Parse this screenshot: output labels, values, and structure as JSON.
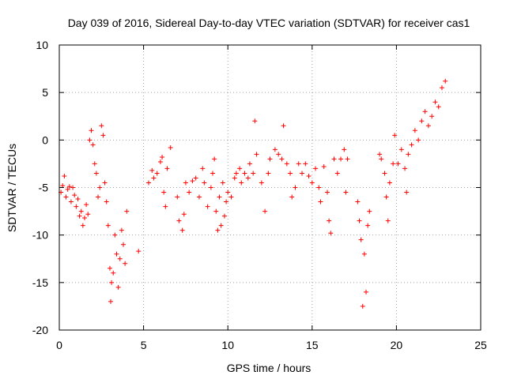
{
  "chart_data": {
    "type": "scatter",
    "title": "Day 039 of 2016, Sidereal Day-to-day VTEC variation (SDTVAR) for receiver cas1",
    "xlabel": "GPS time / hours",
    "ylabel": "SDTVAR / TECUs",
    "xlim": [
      0,
      25
    ],
    "ylim": [
      -20,
      10
    ],
    "xticks": [
      0,
      5,
      10,
      15,
      20,
      25
    ],
    "yticks": [
      -20,
      -15,
      -10,
      -5,
      0,
      5,
      10
    ],
    "grid": true,
    "marker": "+",
    "marker_color": "#ff0000",
    "series": [
      {
        "name": "SDTVAR",
        "points": [
          [
            0.1,
            -5.5
          ],
          [
            0.2,
            -4.8
          ],
          [
            0.3,
            -3.8
          ],
          [
            0.4,
            -6.0
          ],
          [
            0.5,
            -5.2
          ],
          [
            0.6,
            -4.9
          ],
          [
            0.7,
            -6.5
          ],
          [
            0.8,
            -5.0
          ],
          [
            0.9,
            -5.8
          ],
          [
            1.0,
            -7.0
          ],
          [
            1.1,
            -6.2
          ],
          [
            1.2,
            -8.0
          ],
          [
            1.3,
            -7.5
          ],
          [
            1.4,
            -9.0
          ],
          [
            1.5,
            -8.2
          ],
          [
            1.6,
            -6.8
          ],
          [
            1.7,
            -7.8
          ],
          [
            1.8,
            0.0
          ],
          [
            1.9,
            1.0
          ],
          [
            2.0,
            -0.5
          ],
          [
            2.1,
            -2.5
          ],
          [
            2.2,
            -3.5
          ],
          [
            2.3,
            -6.0
          ],
          [
            2.4,
            -5.0
          ],
          [
            2.5,
            1.5
          ],
          [
            2.6,
            0.5
          ],
          [
            2.7,
            -4.5
          ],
          [
            2.8,
            -6.5
          ],
          [
            2.9,
            -9.0
          ],
          [
            3.0,
            -13.5
          ],
          [
            3.05,
            -17.0
          ],
          [
            3.1,
            -15.0
          ],
          [
            3.2,
            -14.0
          ],
          [
            3.3,
            -10.0
          ],
          [
            3.4,
            -12.0
          ],
          [
            3.5,
            -15.5
          ],
          [
            3.6,
            -12.5
          ],
          [
            3.7,
            -9.5
          ],
          [
            3.8,
            -11.0
          ],
          [
            3.9,
            -13.0
          ],
          [
            4.0,
            -7.5
          ],
          [
            4.7,
            -11.7
          ],
          [
            5.3,
            -4.5
          ],
          [
            5.5,
            -3.2
          ],
          [
            5.6,
            -4.0
          ],
          [
            5.8,
            -3.5
          ],
          [
            6.0,
            -2.3
          ],
          [
            6.1,
            -1.8
          ],
          [
            6.2,
            -5.5
          ],
          [
            6.3,
            -7.0
          ],
          [
            6.4,
            -3.0
          ],
          [
            6.6,
            -0.8
          ],
          [
            7.0,
            -6.0
          ],
          [
            7.1,
            -8.5
          ],
          [
            7.3,
            -9.5
          ],
          [
            7.4,
            -7.8
          ],
          [
            7.5,
            -4.5
          ],
          [
            7.7,
            -5.5
          ],
          [
            7.9,
            -4.3
          ],
          [
            8.1,
            -4.0
          ],
          [
            8.3,
            -6.0
          ],
          [
            8.5,
            -3.0
          ],
          [
            8.6,
            -4.5
          ],
          [
            8.8,
            -7.0
          ],
          [
            9.0,
            -5.0
          ],
          [
            9.1,
            -3.5
          ],
          [
            9.2,
            -2.0
          ],
          [
            9.3,
            -7.5
          ],
          [
            9.4,
            -9.5
          ],
          [
            9.5,
            -6.0
          ],
          [
            9.6,
            -9.0
          ],
          [
            9.7,
            -4.5
          ],
          [
            9.8,
            -8.0
          ],
          [
            9.9,
            -6.5
          ],
          [
            10.0,
            -5.5
          ],
          [
            10.2,
            -6.0
          ],
          [
            10.4,
            -4.0
          ],
          [
            10.5,
            -3.5
          ],
          [
            10.7,
            -3.0
          ],
          [
            10.8,
            -4.5
          ],
          [
            11.0,
            -3.5
          ],
          [
            11.2,
            -4.0
          ],
          [
            11.3,
            -2.5
          ],
          [
            11.5,
            -3.5
          ],
          [
            11.6,
            2.0
          ],
          [
            11.7,
            -1.5
          ],
          [
            12.0,
            -4.5
          ],
          [
            12.2,
            -7.5
          ],
          [
            12.4,
            -3.5
          ],
          [
            12.5,
            -2.0
          ],
          [
            12.8,
            -1.0
          ],
          [
            13.0,
            -1.5
          ],
          [
            13.2,
            -2.0
          ],
          [
            13.3,
            1.5
          ],
          [
            13.5,
            -2.5
          ],
          [
            13.7,
            -3.5
          ],
          [
            13.8,
            -6.0
          ],
          [
            14.0,
            -5.0
          ],
          [
            14.2,
            -2.5
          ],
          [
            14.4,
            -3.5
          ],
          [
            14.6,
            -2.5
          ],
          [
            14.8,
            -3.8
          ],
          [
            15.0,
            -4.5
          ],
          [
            15.2,
            -3.0
          ],
          [
            15.4,
            -5.0
          ],
          [
            15.5,
            -6.5
          ],
          [
            15.7,
            -2.8
          ],
          [
            15.9,
            -5.5
          ],
          [
            16.0,
            -8.5
          ],
          [
            16.1,
            -9.8
          ],
          [
            16.3,
            -2.0
          ],
          [
            16.5,
            -3.5
          ],
          [
            16.7,
            -2.0
          ],
          [
            16.9,
            -1.0
          ],
          [
            17.0,
            -5.5
          ],
          [
            17.1,
            -2.0
          ],
          [
            17.7,
            -6.5
          ],
          [
            17.8,
            -8.5
          ],
          [
            17.9,
            -10.5
          ],
          [
            18.0,
            -17.5
          ],
          [
            18.1,
            -12.0
          ],
          [
            18.2,
            -16.0
          ],
          [
            18.3,
            -9.0
          ],
          [
            18.4,
            -7.5
          ],
          [
            19.0,
            -1.5
          ],
          [
            19.1,
            -2.0
          ],
          [
            19.3,
            -3.5
          ],
          [
            19.4,
            -6.0
          ],
          [
            19.5,
            -8.5
          ],
          [
            19.6,
            -4.5
          ],
          [
            19.8,
            -2.5
          ],
          [
            19.9,
            0.5
          ],
          [
            20.1,
            -2.5
          ],
          [
            20.3,
            -1.0
          ],
          [
            20.5,
            -3.0
          ],
          [
            20.6,
            -5.5
          ],
          [
            20.7,
            -1.5
          ],
          [
            20.9,
            -0.5
          ],
          [
            21.1,
            1.0
          ],
          [
            21.3,
            0.0
          ],
          [
            21.5,
            2.0
          ],
          [
            21.7,
            3.0
          ],
          [
            21.9,
            1.5
          ],
          [
            22.1,
            2.5
          ],
          [
            22.3,
            4.0
          ],
          [
            22.5,
            3.5
          ],
          [
            22.7,
            5.5
          ],
          [
            22.9,
            6.2
          ]
        ]
      }
    ]
  }
}
